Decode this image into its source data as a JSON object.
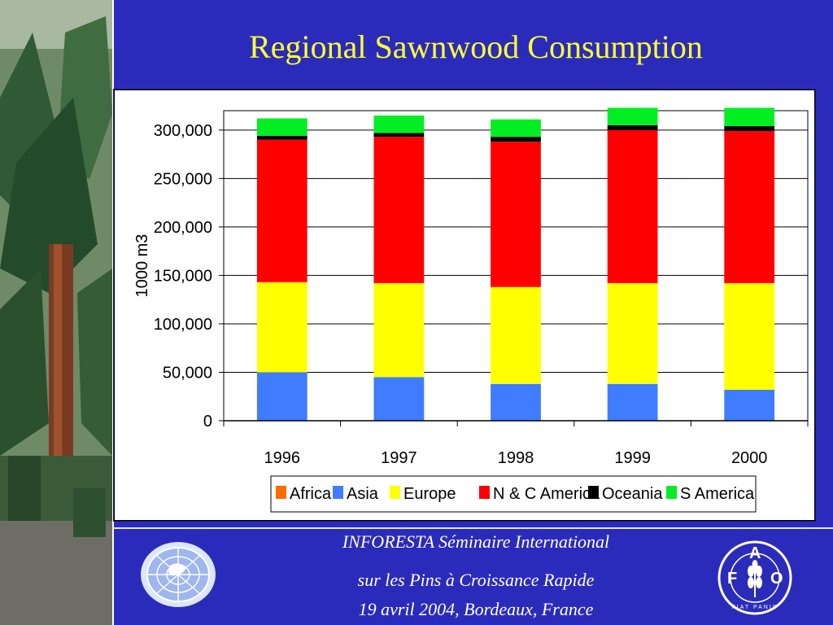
{
  "slide": {
    "title": "Regional Sawnwood Consumption",
    "footer": {
      "line1": "INFORESTA Séminaire International",
      "line2": "sur les Pins à Croissance Rapide",
      "line3": "19 avril 2004, Bordeaux, France"
    },
    "fao_logo": {
      "letters": [
        "F",
        "A",
        "O"
      ],
      "motto": "FIAT PANIS"
    }
  },
  "chart_data": {
    "type": "bar",
    "stacked": true,
    "title": "",
    "xlabel": "",
    "ylabel": "1000 m3",
    "ylim": [
      0,
      320000
    ],
    "yticks": [
      "0",
      "50,000",
      "100,000",
      "150,000",
      "200,000",
      "250,000",
      "300,000"
    ],
    "ytick_values": [
      0,
      50000,
      100000,
      150000,
      200000,
      250000,
      300000
    ],
    "categories": [
      "1996",
      "1997",
      "1998",
      "1999",
      "2000"
    ],
    "legend_position": "bottom",
    "series": [
      {
        "name": "Africa",
        "color": "#ff6a00",
        "values": [
          500,
          500,
          500,
          500,
          500
        ]
      },
      {
        "name": "Asia",
        "color": "#3f7cff",
        "values": [
          49500,
          44500,
          37500,
          37500,
          31500
        ]
      },
      {
        "name": "Europe",
        "color": "#ffff00",
        "values": [
          93000,
          97000,
          100000,
          104000,
          110000
        ]
      },
      {
        "name": "N & C America",
        "color": "#ff0000",
        "values": [
          147000,
          151000,
          150000,
          158000,
          157000
        ]
      },
      {
        "name": "Oceania",
        "color": "#000000",
        "values": [
          4000,
          4000,
          5000,
          5000,
          5000
        ]
      },
      {
        "name": "S America",
        "color": "#00ee22",
        "values": [
          18000,
          18000,
          18000,
          18000,
          19000
        ]
      }
    ]
  }
}
